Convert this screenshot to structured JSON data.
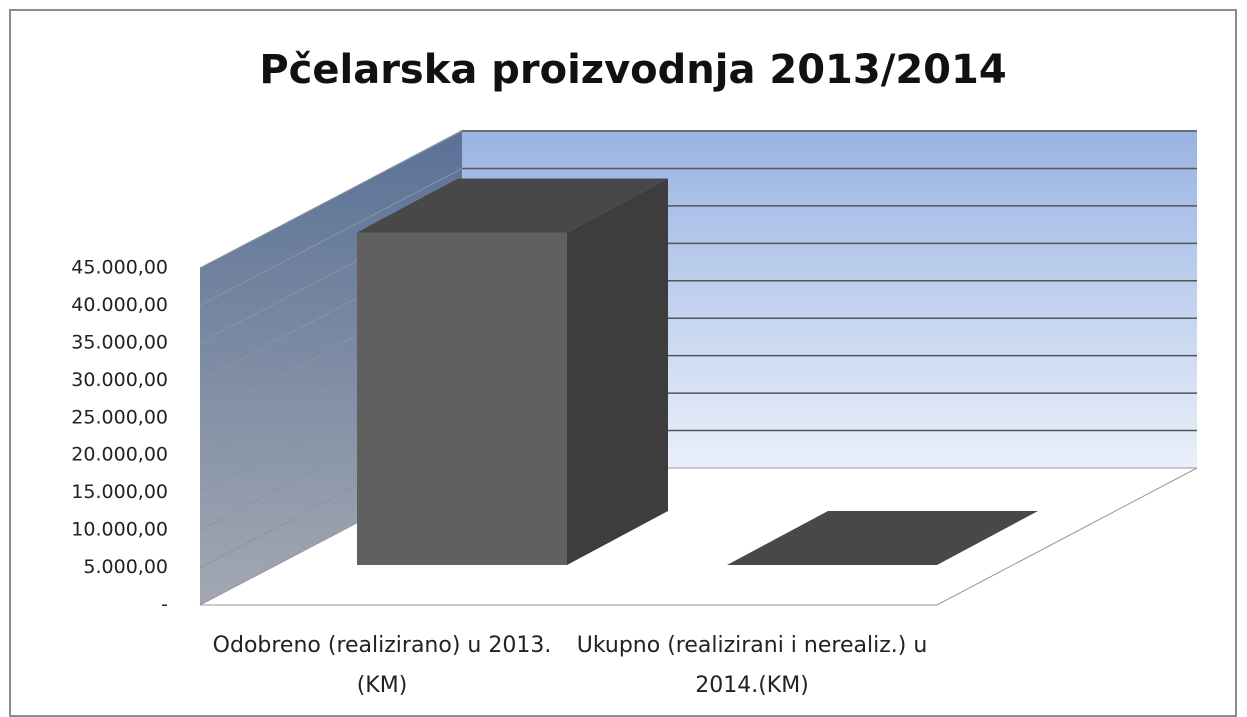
{
  "chart_data": {
    "type": "bar3d",
    "title": "Pčelarska proizvodnja 2013/2014",
    "categories": [
      "Odobreno (realizirano) u 2013. (KM)",
      "Ukupno (realizirani i nerealiz.) u 2014.(KM)"
    ],
    "values": [
      44400,
      0
    ],
    "color": "#606060",
    "ylim": [
      0,
      45000
    ],
    "yticks": [
      {
        "value": 0,
        "label": "-"
      },
      {
        "value": 5000,
        "label": "5.000,00"
      },
      {
        "value": 10000,
        "label": "10.000,00"
      },
      {
        "value": 15000,
        "label": "15.000,00"
      },
      {
        "value": 20000,
        "label": "20.000,00"
      },
      {
        "value": 25000,
        "label": "25.000,00"
      },
      {
        "value": 30000,
        "label": "30.000,00"
      },
      {
        "value": 35000,
        "label": "35.000,00"
      },
      {
        "value": 40000,
        "label": "40.000,00"
      },
      {
        "value": 45000,
        "label": "45.000,00"
      }
    ],
    "grid": true
  }
}
